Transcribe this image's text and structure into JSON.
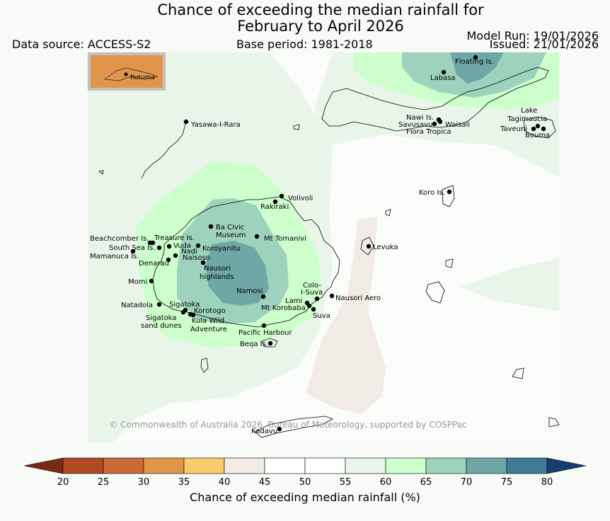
{
  "title_line1": "Chance of exceeding the median rainfall for",
  "title_line2": "February to April 2026",
  "data_source": "Data source: ACCESS-S2",
  "base_period": "Base period: 1981-2018",
  "model_run": "Model Run: 19/01/2026",
  "issued": "Issued: 21/01/2026",
  "inset_label": "Rotuma",
  "copyright": "© Commonwealth of Australia 2026, Bureau of Meteorology, supported by COSPPac",
  "colorbar": {
    "label": "Chance of exceeding median rainfall (%)",
    "ticks": [
      "20",
      "25",
      "30",
      "35",
      "40",
      "45",
      "50",
      "55",
      "60",
      "65",
      "70",
      "75",
      "80"
    ],
    "colors": [
      "#7a2a12",
      "#b04a25",
      "#cc6a35",
      "#e0954a",
      "#f8cc6a",
      "#f0ebe5",
      "#ffffff",
      "#ffffff",
      "#e8f5e8",
      "#ccffcc",
      "#9cd3bc",
      "#6fa6a6",
      "#3f7b96",
      "#143f70"
    ]
  },
  "places": [
    {
      "name": "Floating Is.",
      "id": "floating-is"
    },
    {
      "name": "Labasa",
      "id": "labasa"
    },
    {
      "name": "Nawi Is.",
      "id": "nawi-is"
    },
    {
      "name": "Savusavu",
      "id": "savusavu"
    },
    {
      "name": "Waisali",
      "id": "waisali"
    },
    {
      "name": "Flora Tropica",
      "id": "flora-tropica"
    },
    {
      "name": "Lake",
      "id": "lake-1"
    },
    {
      "name": "Tagimaucia",
      "id": "tagimaucia"
    },
    {
      "name": "Taveuni",
      "id": "taveuni"
    },
    {
      "name": "Bouma",
      "id": "bouma"
    },
    {
      "name": "Yasawa-I-Rara",
      "id": "yasawa-i-rara"
    },
    {
      "name": "Koro Is.",
      "id": "koro-is"
    },
    {
      "name": "Volivoli",
      "id": "volivoli"
    },
    {
      "name": "Rakiraki",
      "id": "rakiraki"
    },
    {
      "name": "Ba Civic",
      "id": "ba-civic"
    },
    {
      "name": "Museum",
      "id": "museum"
    },
    {
      "name": "Mt Tomanivi",
      "id": "mt-tomanivi"
    },
    {
      "name": "Levuka",
      "id": "levuka"
    },
    {
      "name": "Beachcomber Is.",
      "id": "beachcomber-is"
    },
    {
      "name": "Treasure Is.",
      "id": "treasure-is"
    },
    {
      "name": "South Sea Is.",
      "id": "south-sea-is"
    },
    {
      "name": "Vuda",
      "id": "vuda"
    },
    {
      "name": "Koroyanitu",
      "id": "koroyanitu"
    },
    {
      "name": "Nadi",
      "id": "nadi"
    },
    {
      "name": "Mamanuca Is.",
      "id": "mamanuca-is"
    },
    {
      "name": "Naisoso",
      "id": "naisoso"
    },
    {
      "name": "Denarau",
      "id": "denarau"
    },
    {
      "name": "Nausori",
      "id": "nausori"
    },
    {
      "name": "highlands",
      "id": "highlands"
    },
    {
      "name": "Momi",
      "id": "momi"
    },
    {
      "name": "Namosi",
      "id": "namosi"
    },
    {
      "name": "Colo-",
      "id": "colo"
    },
    {
      "name": "I-Suva",
      "id": "i-suva"
    },
    {
      "name": "Lami",
      "id": "lami"
    },
    {
      "name": "Nausori Aero",
      "id": "nausori-aero"
    },
    {
      "name": "Natadola",
      "id": "natadola"
    },
    {
      "name": "Sigatoka",
      "id": "sigatoka"
    },
    {
      "name": "Korotogo",
      "id": "korotogo"
    },
    {
      "name": "Mt Korobaba",
      "id": "mt-korobaba"
    },
    {
      "name": "Suva",
      "id": "suva"
    },
    {
      "name": "Sigatoka",
      "id": "sigatoka-dunes"
    },
    {
      "name": "sand dunes",
      "id": "sand-dunes"
    },
    {
      "name": "Kula Wild",
      "id": "kula-wild"
    },
    {
      "name": "Adventure",
      "id": "adventure"
    },
    {
      "name": "Pacific Harbour",
      "id": "pacific-harbour"
    },
    {
      "name": "Beqa Is.",
      "id": "beqa-is"
    },
    {
      "name": "Kadavu",
      "id": "kadavu"
    }
  ]
}
